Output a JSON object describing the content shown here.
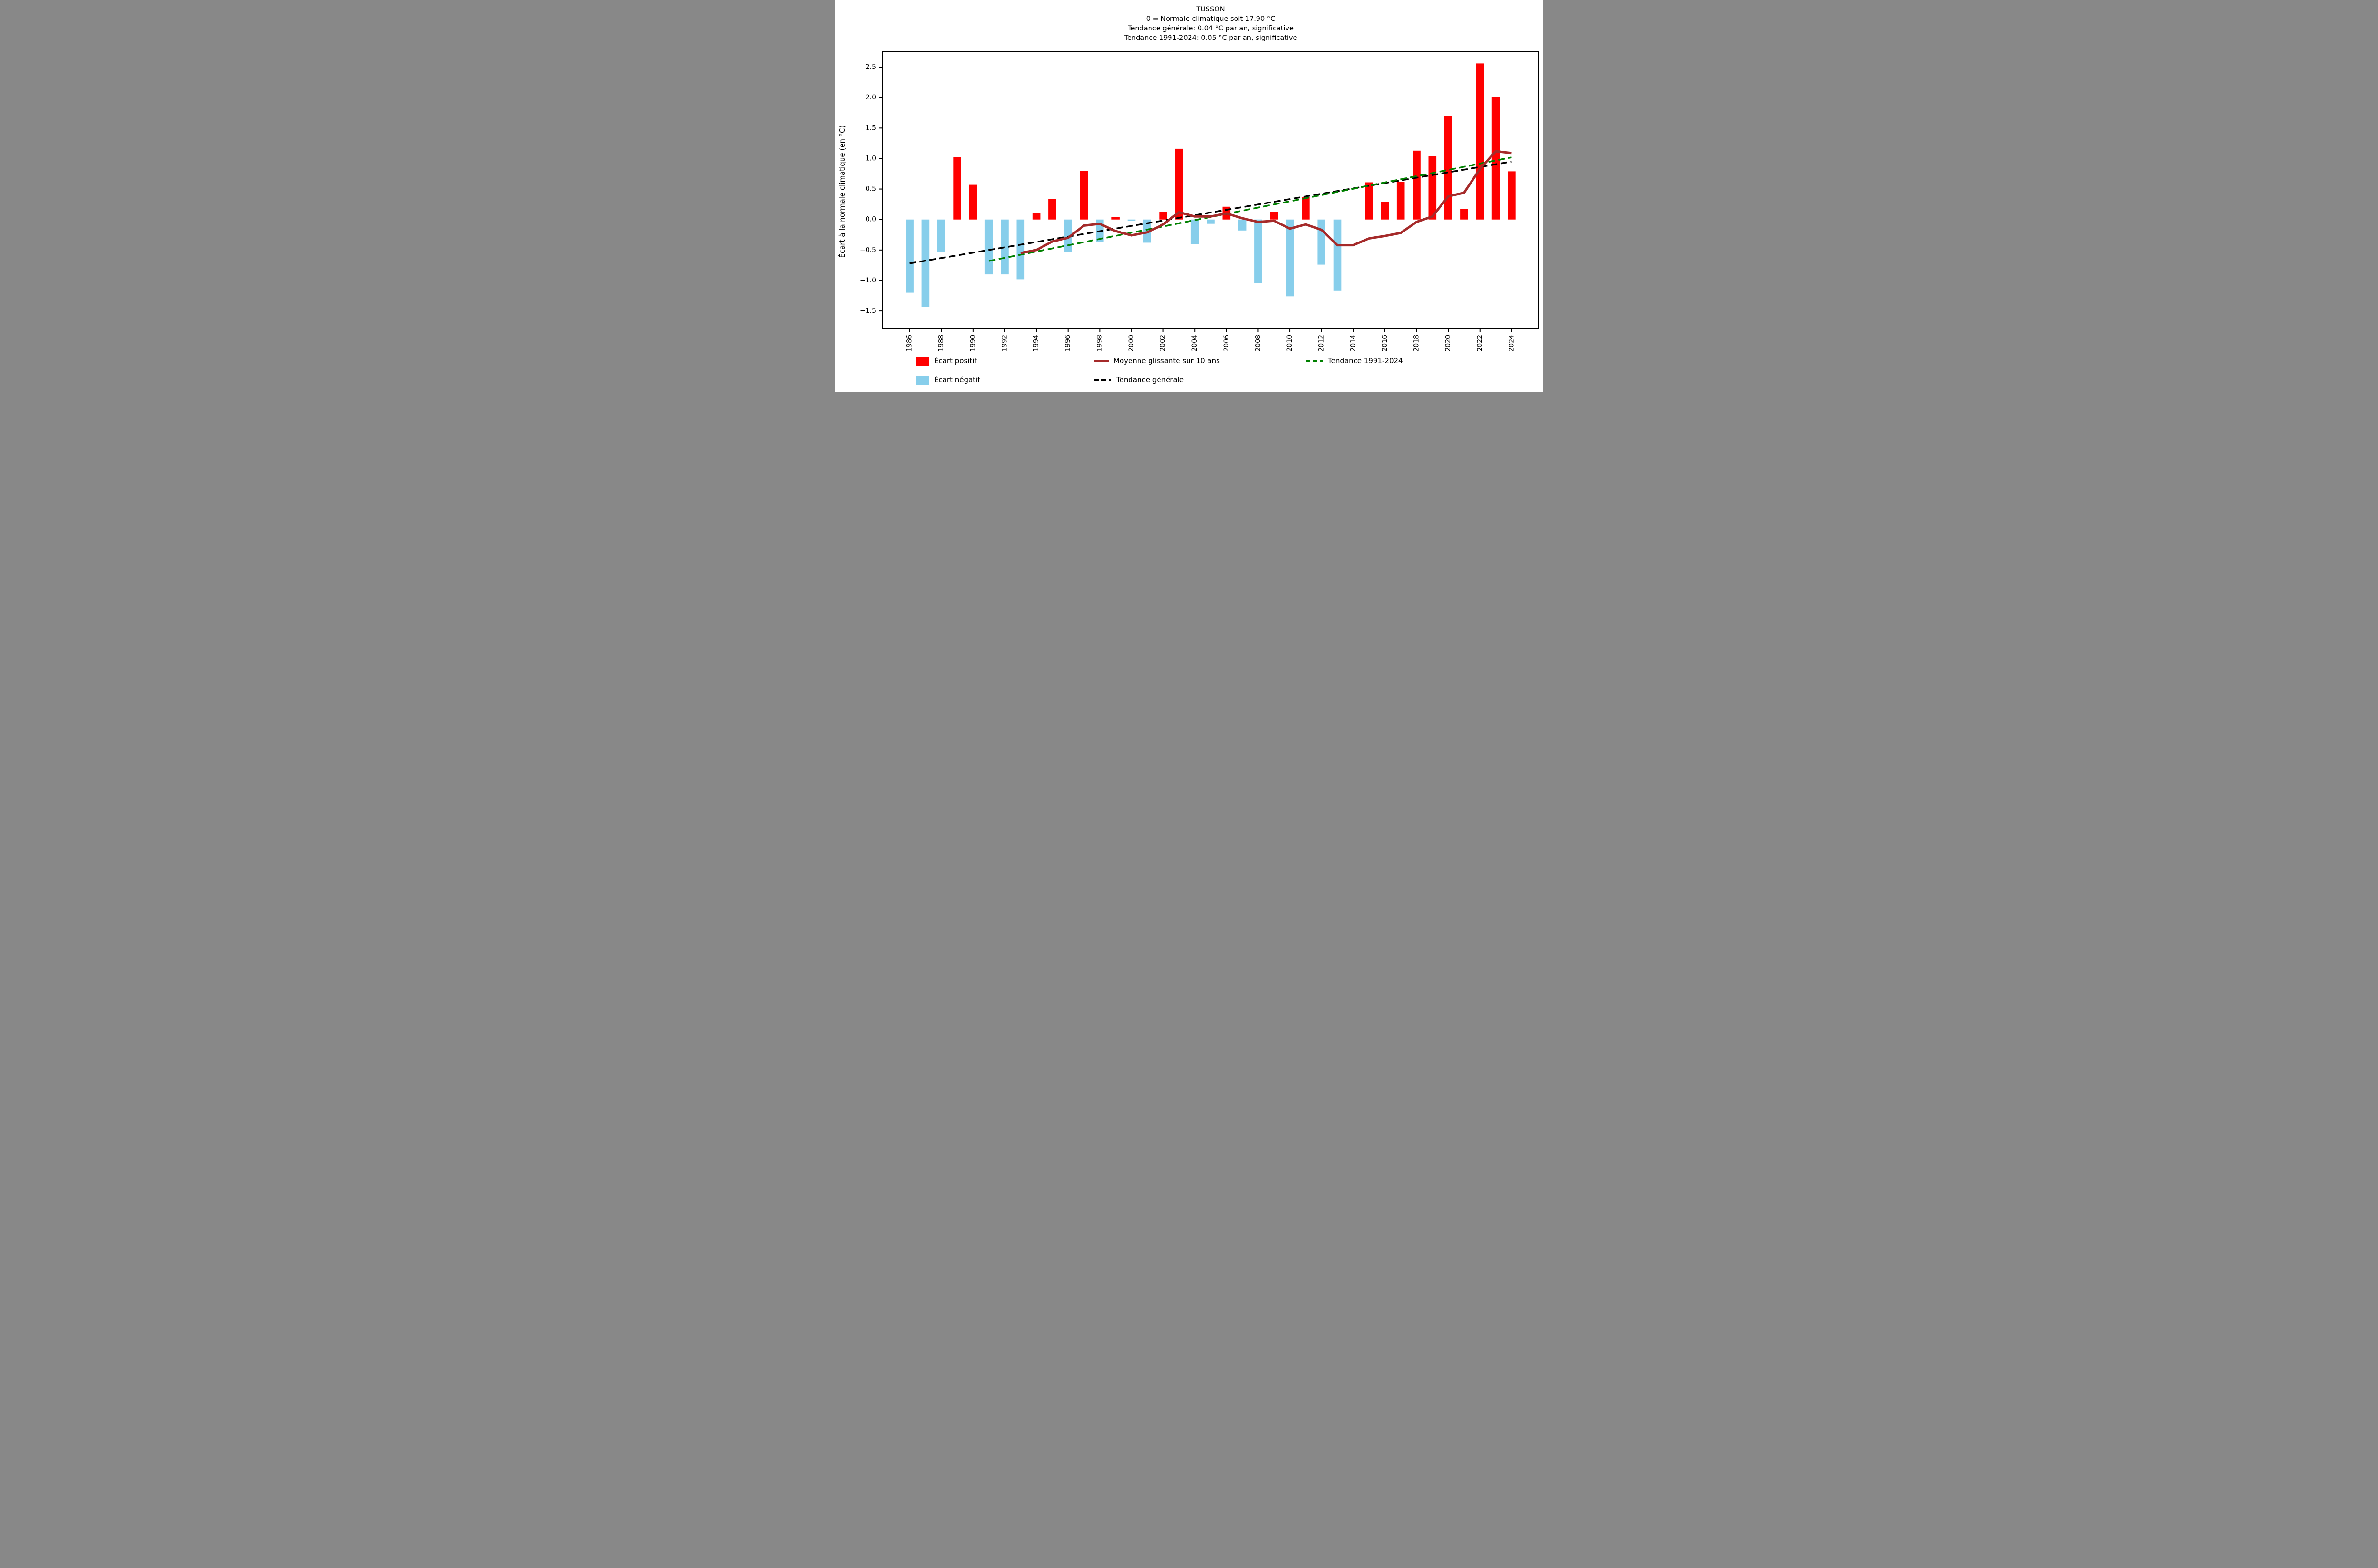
{
  "title": {
    "station": "TUSSON",
    "subtitle1": "0 = Normale climatique soit 17.90 °C",
    "subtitle2": "Tendance générale: 0.04 °C par an, significative",
    "subtitle3": "Tendance 1991-2024: 0.05 °C par an, significative"
  },
  "axes": {
    "ylabel": "Écart à la normale climatique (en °C)",
    "yticks": [
      -1.5,
      -1.0,
      -0.5,
      0.0,
      0.5,
      1.0,
      1.5,
      2.0,
      2.5
    ],
    "xticks": [
      1986,
      1988,
      1990,
      1992,
      1994,
      1996,
      1998,
      2000,
      2002,
      2004,
      2006,
      2008,
      2010,
      2012,
      2014,
      2016,
      2018,
      2020,
      2022,
      2024
    ],
    "xlim": [
      1984.3,
      2025.7
    ],
    "ylim": [
      -1.78,
      2.75
    ],
    "grid": false
  },
  "colors": {
    "positive": "#ff0000",
    "negative": "#87ceeb",
    "moving_average": "#a52a2a",
    "trend_general": "#000000",
    "trend_1991_2024": "#008000",
    "axis": "#000000"
  },
  "legend": {
    "items": [
      {
        "label": "Écart positif",
        "swatch": "patch",
        "color_key": "positive"
      },
      {
        "label": "Moyenne glissante sur 10 ans",
        "swatch": "line",
        "color_key": "moving_average"
      },
      {
        "label": "Tendance 1991-2024",
        "swatch": "dashed",
        "color_key": "trend_1991_2024"
      },
      {
        "label": "Écart négatif",
        "swatch": "patch",
        "color_key": "negative"
      },
      {
        "label": "Tendance générale",
        "swatch": "dashed",
        "color_key": "trend_general"
      }
    ]
  },
  "chart_data": {
    "type": "bar",
    "title": "TUSSON",
    "xlabel": "",
    "ylabel": "Écart à la normale climatique (en °C)",
    "categories": [
      1986,
      1987,
      1988,
      1989,
      1990,
      1991,
      1992,
      1993,
      1994,
      1995,
      1996,
      1997,
      1998,
      1999,
      2000,
      2001,
      2002,
      2003,
      2004,
      2005,
      2006,
      2007,
      2008,
      2009,
      2010,
      2011,
      2012,
      2013,
      2014,
      2015,
      2016,
      2017,
      2018,
      2019,
      2020,
      2021,
      2022,
      2023,
      2024
    ],
    "values": [
      -1.2,
      -1.43,
      -0.53,
      1.02,
      0.57,
      -0.9,
      -0.9,
      -0.98,
      0.1,
      0.34,
      -0.54,
      0.8,
      -0.37,
      0.04,
      -0.02,
      -0.38,
      0.13,
      1.16,
      -0.4,
      -0.07,
      0.21,
      -0.18,
      -1.04,
      0.13,
      -1.26,
      0.37,
      -0.74,
      -1.17,
      0.0,
      0.61,
      0.29,
      0.62,
      1.13,
      1.04,
      1.7,
      0.17,
      2.56,
      2.01,
      0.79
    ],
    "series": [
      {
        "name": "Moyenne glissante sur 10 ans",
        "type": "line",
        "x": [
          1993,
          1994,
          1995,
          1996,
          1997,
          1998,
          1999,
          2000,
          2001,
          2002,
          2003,
          2004,
          2005,
          2006,
          2007,
          2008,
          2009,
          2010,
          2011,
          2012,
          2013,
          2014,
          2015,
          2016,
          2017,
          2018,
          2019,
          2020,
          2021,
          2022,
          2023,
          2024
        ],
        "values": [
          -0.55,
          -0.5,
          -0.36,
          -0.3,
          -0.1,
          -0.07,
          -0.19,
          -0.26,
          -0.21,
          -0.08,
          0.12,
          0.05,
          0.05,
          0.1,
          0.02,
          -0.04,
          -0.02,
          -0.15,
          -0.08,
          -0.17,
          -0.42,
          -0.42,
          -0.31,
          -0.27,
          -0.22,
          -0.04,
          0.05,
          0.38,
          0.44,
          0.83,
          1.12,
          1.09
        ]
      },
      {
        "name": "Tendance générale",
        "type": "trend",
        "x": [
          1986,
          2024
        ],
        "values": [
          -0.72,
          0.95
        ],
        "rate_per_year": 0.04
      },
      {
        "name": "Tendance 1991-2024",
        "type": "trend",
        "x": [
          1991,
          2024
        ],
        "values": [
          -0.68,
          1.02
        ],
        "rate_per_year": 0.05
      }
    ],
    "normale_climatique_c": 17.9,
    "legend_position": "below"
  }
}
